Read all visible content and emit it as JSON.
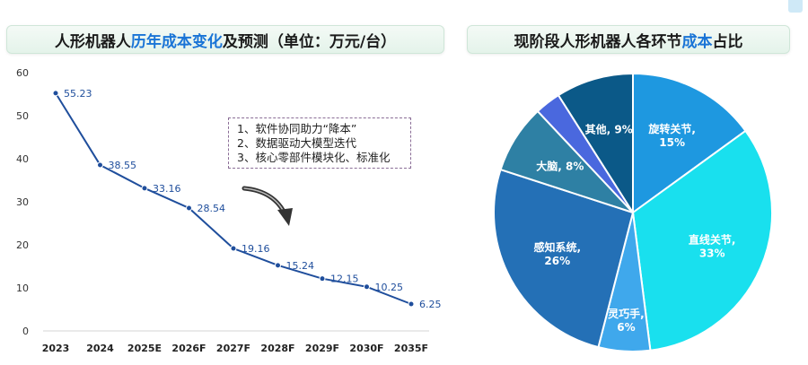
{
  "left_title": {
    "pre": "人形机器人",
    "highlight": "历年成本变化",
    "post": "及预测（单位：万元/台）"
  },
  "right_title": {
    "pre": "现阶段人形机器人各环节",
    "highlight": "成本",
    "post": "占比"
  },
  "note_lines": [
    "1、软件协同助力“降本”",
    "2、数据驱动大模型迭代",
    "3、核心零部件模块化、标准化"
  ],
  "colors": {
    "line": "#1f4e9c",
    "title_highlight": "#1a74d6"
  },
  "chart_data": [
    {
      "type": "line",
      "title": "人形机器人历年成本变化及预测（单位：万元/台）",
      "categories": [
        "2023",
        "2024",
        "2025E",
        "2026F",
        "2027F",
        "2028F",
        "2029F",
        "2030F",
        "2035F"
      ],
      "values": [
        55.23,
        38.55,
        33.16,
        28.54,
        19.16,
        15.24,
        12.15,
        10.25,
        6.25
      ],
      "value_labels": [
        "55.23",
        "38.55",
        "33.16",
        "28.54",
        "19.16",
        "15.24",
        "12.15",
        "10.25",
        "6.25"
      ],
      "yticks": [
        "0",
        "10",
        "20",
        "30",
        "40",
        "50",
        "60"
      ],
      "ylim": [
        0,
        60
      ],
      "grid": false
    },
    {
      "type": "pie",
      "title": "现阶段人形机器人各环节成本占比",
      "slices": [
        {
          "label": "旋转关节,",
          "pct": "15%",
          "value": 15,
          "color": "#1e98e0",
          "text_color": "#ffffff"
        },
        {
          "label": "直线关节,",
          "pct": "33%",
          "value": 33,
          "color": "#19e0ee",
          "text_color": "#ffffff"
        },
        {
          "label": "灵巧手,",
          "pct": "6%",
          "value": 6,
          "color": "#3fa8ec",
          "text_color": "#ffffff"
        },
        {
          "label": "感知系统,",
          "pct": "26%",
          "value": 26,
          "color": "#2470b6",
          "text_color": "#ffffff"
        },
        {
          "label": "大脑, 8%",
          "pct": "",
          "value": 8,
          "color": "#2e80a4",
          "text_color": "#ffffff"
        },
        {
          "label": "",
          "pct": "",
          "value": 3,
          "color": "#4a68de",
          "text_color": "#ffffff"
        },
        {
          "label": "其他, 9%",
          "pct": "",
          "value": 9,
          "color": "#0b5988",
          "text_color": "#ffffff"
        }
      ]
    }
  ]
}
